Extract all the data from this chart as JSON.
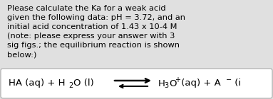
{
  "background_color": "#e0e0e0",
  "box2_color": "#ffffff",
  "text_color": "#000000",
  "main_text_lines": [
    "Please calculate the Ka for a weak acid",
    "given the following data: pH = 3.72, and an",
    "initial acid concentration of 1.43 x 10-4 M",
    "(note: please express your answer with 3",
    "sig figs.; the equilibrium reaction is shown",
    "below:)"
  ],
  "font_size_main": 8.2,
  "font_size_reaction": 9.5,
  "font_size_sub": 7.0
}
